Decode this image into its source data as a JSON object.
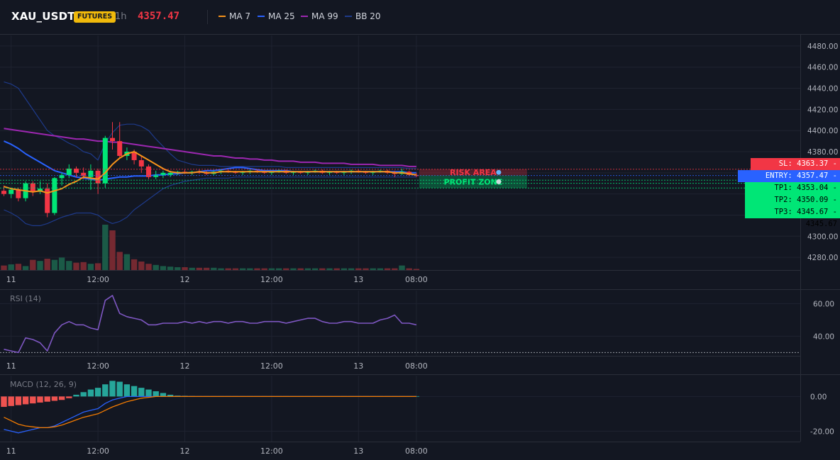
{
  "header": {
    "symbol": "XAU_USDT",
    "badge": "FUTURES",
    "timeframe": "1h",
    "last_price": "4357.47",
    "legend": [
      {
        "label": "MA 7",
        "color": "#f7931a"
      },
      {
        "label": "MA 25",
        "color": "#2962ff"
      },
      {
        "label": "MA 99",
        "color": "#9c27b0"
      },
      {
        "label": "BB 20",
        "color": "#1e3a8a"
      }
    ]
  },
  "colors": {
    "background": "#131722",
    "grid": "#1f2330",
    "up": "#00e676",
    "down": "#f23645",
    "entry": "#2962ff",
    "rsi": "#7e57c2",
    "macd": "#2962ff",
    "signal": "#f57c00"
  },
  "x_axis": {
    "ticks": [
      {
        "label": "11",
        "index": 1
      },
      {
        "label": "12:00",
        "index": 13
      },
      {
        "label": "12",
        "index": 25
      },
      {
        "label": "12:00",
        "index": 37
      },
      {
        "label": "13",
        "index": 49
      },
      {
        "label": "08:00",
        "index": 57
      }
    ]
  },
  "chart_data": [
    {
      "type": "candlestick",
      "pane": "price",
      "ylim": [
        4268,
        4490
      ],
      "y_ticks": [
        4280,
        4300,
        4320,
        4340,
        4360,
        4380,
        4400,
        4420,
        4440,
        4460,
        4480
      ],
      "candles": [
        [
          4343,
          4348,
          4338,
          4340
        ],
        [
          4340,
          4346,
          4336,
          4344
        ],
        [
          4344,
          4346,
          4333,
          4336
        ],
        [
          4336,
          4352,
          4333,
          4350
        ],
        [
          4350,
          4352,
          4338,
          4342
        ],
        [
          4342,
          4352,
          4340,
          4345
        ],
        [
          4345,
          4350,
          4318,
          4322
        ],
        [
          4322,
          4356,
          4320,
          4355
        ],
        [
          4355,
          4360,
          4348,
          4358
        ],
        [
          4358,
          4368,
          4355,
          4364
        ],
        [
          4364,
          4366,
          4356,
          4360
        ],
        [
          4360,
          4365,
          4354,
          4357
        ],
        [
          4356,
          4368,
          4344,
          4362
        ],
        [
          4362,
          4364,
          4340,
          4350
        ],
        [
          4350,
          4395,
          4346,
          4393
        ],
        [
          4393,
          4408,
          4382,
          4390
        ],
        [
          4390,
          4408,
          4375,
          4376
        ],
        [
          4376,
          4384,
          4372,
          4380
        ],
        [
          4380,
          4382,
          4368,
          4372
        ],
        [
          4372,
          4376,
          4360,
          4366
        ],
        [
          4366,
          4368,
          4354,
          4356
        ],
        [
          4356,
          4362,
          4354,
          4358
        ],
        [
          4358,
          4362,
          4355,
          4360
        ],
        [
          4358,
          4362,
          4356,
          4360
        ],
        [
          4360,
          4362,
          4358,
          4361
        ],
        [
          4361,
          4363,
          4359,
          4360
        ],
        [
          4360,
          4362,
          4358,
          4361
        ],
        [
          4361,
          4363,
          4359,
          4360
        ],
        [
          4360,
          4362,
          4358,
          4359
        ],
        [
          4359,
          4362,
          4358,
          4361
        ],
        [
          4361,
          4363,
          4359,
          4362
        ],
        [
          4362,
          4363,
          4360,
          4361
        ],
        [
          4361,
          4362,
          4359,
          4360
        ],
        [
          4360,
          4362,
          4358,
          4361
        ],
        [
          4361,
          4363,
          4359,
          4362
        ],
        [
          4362,
          4363,
          4360,
          4361
        ],
        [
          4361,
          4362,
          4359,
          4360
        ],
        [
          4360,
          4362,
          4358,
          4361
        ],
        [
          4361,
          4363,
          4360,
          4362
        ],
        [
          4362,
          4363,
          4359,
          4360
        ],
        [
          4360,
          4362,
          4358,
          4361
        ],
        [
          4361,
          4362,
          4359,
          4360
        ],
        [
          4360,
          4362,
          4358,
          4361
        ],
        [
          4361,
          4363,
          4360,
          4362
        ],
        [
          4362,
          4363,
          4359,
          4360
        ],
        [
          4360,
          4362,
          4358,
          4361
        ],
        [
          4361,
          4362,
          4359,
          4360
        ],
        [
          4360,
          4362,
          4358,
          4361
        ],
        [
          4361,
          4363,
          4359,
          4362
        ],
        [
          4362,
          4363,
          4360,
          4361
        ],
        [
          4361,
          4362,
          4359,
          4360
        ],
        [
          4360,
          4362,
          4358,
          4361
        ],
        [
          4361,
          4363,
          4360,
          4362
        ],
        [
          4362,
          4363,
          4359,
          4360
        ],
        [
          4360,
          4362,
          4356,
          4359
        ],
        [
          4359,
          4364,
          4358,
          4361
        ],
        [
          4361,
          4362,
          4357,
          4358
        ],
        [
          4358,
          4360,
          4356,
          4357
        ]
      ],
      "volume_ylim": [
        0,
        100
      ],
      "volumes": [
        8,
        10,
        11,
        7,
        18,
        16,
        20,
        18,
        22,
        16,
        13,
        14,
        11,
        12,
        80,
        70,
        32,
        28,
        19,
        15,
        11,
        9,
        7,
        6,
        5,
        5,
        4,
        4,
        4,
        4,
        3,
        3,
        3,
        3,
        3,
        3,
        3,
        3,
        3,
        3,
        3,
        3,
        3,
        3,
        3,
        3,
        3,
        3,
        3,
        3,
        3,
        3,
        3,
        3,
        3,
        8,
        3,
        2
      ],
      "ma7": [
        4347,
        4345,
        4344,
        4343,
        4342,
        4343,
        4341,
        4343,
        4345,
        4349,
        4352,
        4356,
        4355,
        4354,
        4360,
        4368,
        4374,
        4378,
        4380,
        4376,
        4372,
        4368,
        4364,
        4361,
        4360,
        4360,
        4360,
        4361,
        4360,
        4360,
        4361,
        4361,
        4361,
        4361,
        4361,
        4361,
        4361,
        4361,
        4361,
        4361,
        4361,
        4361,
        4361,
        4361,
        4361,
        4361,
        4361,
        4361,
        4361,
        4361,
        4361,
        4361,
        4361,
        4361,
        4360,
        4360,
        4359,
        4358
      ],
      "ma25": [
        4390,
        4387,
        4383,
        4378,
        4374,
        4370,
        4366,
        4362,
        4360,
        4358,
        4356,
        4355,
        4354,
        4353,
        4354,
        4355,
        4356,
        4356,
        4357,
        4357,
        4357,
        4358,
        4358,
        4359,
        4359,
        4360,
        4360,
        4361,
        4362,
        4362,
        4363,
        4364,
        4365,
        4365,
        4364,
        4363,
        4362,
        4362,
        4362,
        4362,
        4361,
        4361,
        4361,
        4361,
        4361,
        4361,
        4361,
        4361,
        4361,
        4361,
        4361,
        4361,
        4361,
        4361,
        4361,
        4361,
        4360,
        4360
      ],
      "ma99": [
        4402,
        4401,
        4400,
        4399,
        4398,
        4397,
        4396,
        4395,
        4394,
        4393,
        4392,
        4392,
        4391,
        4390,
        4390,
        4389,
        4389,
        4388,
        4387,
        4386,
        4385,
        4384,
        4383,
        4382,
        4381,
        4380,
        4379,
        4378,
        4377,
        4376,
        4376,
        4375,
        4374,
        4374,
        4373,
        4373,
        4372,
        4372,
        4371,
        4371,
        4371,
        4370,
        4370,
        4370,
        4369,
        4369,
        4369,
        4369,
        4368,
        4368,
        4368,
        4368,
        4367,
        4367,
        4367,
        4367,
        4366,
        4366
      ],
      "bb_upper": [
        4446,
        4444,
        4440,
        4430,
        4420,
        4410,
        4400,
        4395,
        4392,
        4388,
        4385,
        4380,
        4378,
        4372,
        4388,
        4398,
        4405,
        4406,
        4406,
        4404,
        4400,
        4392,
        4385,
        4378,
        4372,
        4370,
        4368,
        4367,
        4367,
        4367,
        4366,
        4366,
        4366,
        4366,
        4366,
        4366,
        4366,
        4366,
        4366,
        4365,
        4365,
        4365,
        4365,
        4365,
        4365,
        4365,
        4365,
        4365,
        4365,
        4365,
        4365,
        4365,
        4365,
        4365,
        4365,
        4365,
        4364,
        4364
      ],
      "bb_lower": [
        4325,
        4322,
        4318,
        4312,
        4310,
        4310,
        4312,
        4315,
        4318,
        4320,
        4322,
        4322,
        4322,
        4320,
        4315,
        4312,
        4314,
        4318,
        4325,
        4330,
        4335,
        4340,
        4345,
        4348,
        4350,
        4352,
        4353,
        4354,
        4355,
        4355,
        4355,
        4355,
        4356,
        4356,
        4356,
        4356,
        4356,
        4356,
        4356,
        4356,
        4356,
        4356,
        4356,
        4356,
        4356,
        4356,
        4356,
        4356,
        4356,
        4356,
        4356,
        4356,
        4356,
        4356,
        4356,
        4356,
        4356,
        4356
      ],
      "levels": [
        {
          "label": "SL: 4363.37",
          "price": 4363.37,
          "value": "4363.37",
          "color": "#f23645"
        },
        {
          "label": "ENTRY: 4357.47",
          "price": 4357.47,
          "value": "4357.47",
          "color": "#2962ff"
        },
        {
          "label": "TP1: 4353.04",
          "price": 4353.04,
          "value": "4353.04",
          "color": "#00e676"
        },
        {
          "label": "TP2: 4350.09",
          "price": 4350.09,
          "value": "4350.09",
          "color": "#00e676"
        },
        {
          "label": "TP3: 4345.67",
          "price": 4345.67,
          "value": "4345.67",
          "color": "#00e676"
        }
      ],
      "zones": [
        {
          "label": "RISK AREA",
          "icon": "shield-icon",
          "from": 4357.47,
          "to": 4363.37,
          "color": "#f23645"
        },
        {
          "label": "PROFIT ZONE",
          "icon": "rocket-icon",
          "from": 4345.67,
          "to": 4357.47,
          "color": "#00e676"
        }
      ]
    },
    {
      "type": "line",
      "pane": "rsi",
      "title": "RSI (14)",
      "ylim": [
        28,
        68
      ],
      "y_ticks": [
        40,
        60
      ],
      "threshold": 30,
      "values": [
        32,
        31,
        30,
        39,
        38,
        36,
        31,
        42,
        47,
        49,
        47,
        47,
        45,
        44,
        62,
        65,
        54,
        52,
        51,
        50,
        47,
        47,
        48,
        48,
        48,
        49,
        48,
        49,
        48,
        49,
        49,
        48,
        49,
        49,
        48,
        48,
        49,
        49,
        49,
        48,
        49,
        50,
        51,
        51,
        49,
        48,
        48,
        49,
        49,
        48,
        48,
        48,
        50,
        51,
        53,
        48,
        48,
        47
      ]
    },
    {
      "type": "macd",
      "pane": "macd",
      "title": "MACD (12, 26, 9)",
      "ylim": [
        -26,
        12
      ],
      "y_ticks": [
        0,
        -20
      ],
      "histogram": [
        -6,
        -5.5,
        -5,
        -4.5,
        -4,
        -3.5,
        -3,
        -2.5,
        -2,
        -1,
        1,
        2.5,
        4,
        5,
        7,
        9,
        8.5,
        7,
        6,
        5,
        4,
        3,
        2,
        1,
        0.5,
        0.4,
        0.3,
        0.2,
        0.2,
        0.2,
        0.2,
        0.2,
        0.2,
        0.2,
        0.2,
        0.2,
        0.2,
        0.2,
        0.2,
        0.2,
        0.2,
        0.2,
        0.2,
        0.2,
        0.2,
        0.2,
        0.2,
        0.2,
        0.2,
        0.2,
        0.2,
        0.2,
        0.2,
        0.2,
        0.2,
        0.2,
        0.2,
        0.2
      ],
      "macd": [
        -19,
        -20,
        -21,
        -20,
        -19,
        -18,
        -18,
        -17,
        -15,
        -13,
        -11,
        -9,
        -8,
        -7,
        -4,
        -2,
        -1,
        0,
        0,
        0,
        0,
        0,
        0,
        0,
        0,
        0,
        0,
        0,
        0,
        0,
        0,
        0,
        0,
        0,
        0,
        0,
        0,
        0,
        0,
        0,
        0,
        0,
        0,
        0,
        0,
        0,
        0,
        0,
        0,
        0,
        0,
        0,
        0,
        0,
        0,
        0,
        0,
        0
      ],
      "signal": [
        -12,
        -14,
        -16,
        -17,
        -17.5,
        -18,
        -18,
        -17.5,
        -16.5,
        -15,
        -13.5,
        -12,
        -11,
        -10,
        -8,
        -6,
        -4.5,
        -3,
        -2,
        -1,
        -0.5,
        0,
        0,
        0,
        0,
        0,
        0,
        0,
        0,
        0,
        0,
        0,
        0,
        0,
        0,
        0,
        0,
        0,
        0,
        0,
        0,
        0,
        0,
        0,
        0,
        0,
        0,
        0,
        0,
        0,
        0,
        0,
        0,
        0,
        0,
        0,
        0,
        0
      ]
    }
  ]
}
